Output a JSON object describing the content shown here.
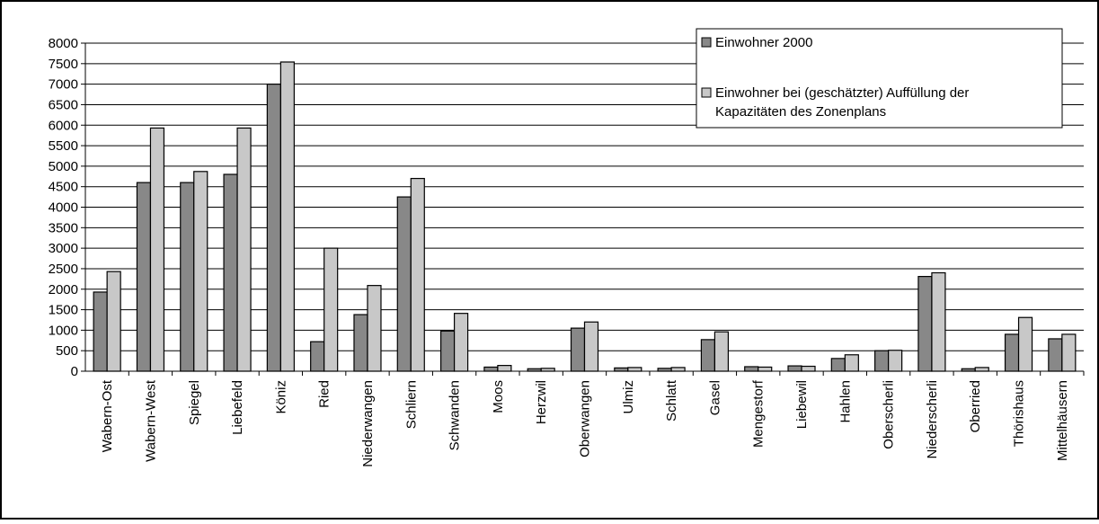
{
  "chart_data": {
    "type": "bar",
    "title": "",
    "xlabel": "",
    "ylabel": "",
    "ylim": [
      0,
      8000
    ],
    "yticks": [
      0,
      500,
      1000,
      1500,
      2000,
      2500,
      3000,
      3500,
      4000,
      4500,
      5000,
      5500,
      6000,
      6500,
      7000,
      7500,
      8000
    ],
    "grid": true,
    "legend_position": "top-right",
    "categories": [
      "Wabern-Ost",
      "Wabern-West",
      "Spiegel",
      "Liebefeld",
      "Köniz",
      "Ried",
      "Niederwangen",
      "Schliern",
      "Schwanden",
      "Moos",
      "Herzwil",
      "Oberwangen",
      "Ulmiz",
      "Schlatt",
      "Gasel",
      "Mengestorf",
      "Liebewil",
      "Hahlen",
      "Oberscherli",
      "Niederscherli",
      "Oberried",
      "Thörishaus",
      "Mittelhäusern"
    ],
    "series": [
      {
        "name": "Einwohner 2000",
        "color": "#888888",
        "values": [
          1930,
          4600,
          4600,
          4800,
          7000,
          720,
          1380,
          4250,
          980,
          100,
          60,
          1050,
          80,
          70,
          770,
          110,
          130,
          310,
          500,
          2310,
          60,
          900,
          790
        ]
      },
      {
        "name": "Einwohner bei (geschätzter) Auffüllung der Kapazitäten des Zonenplans",
        "color": "#c8c8c8",
        "values": [
          2430,
          5930,
          4870,
          5930,
          7540,
          3000,
          2090,
          4700,
          1410,
          140,
          70,
          1200,
          90,
          90,
          960,
          100,
          120,
          400,
          510,
          2400,
          90,
          1310,
          900
        ]
      }
    ]
  }
}
